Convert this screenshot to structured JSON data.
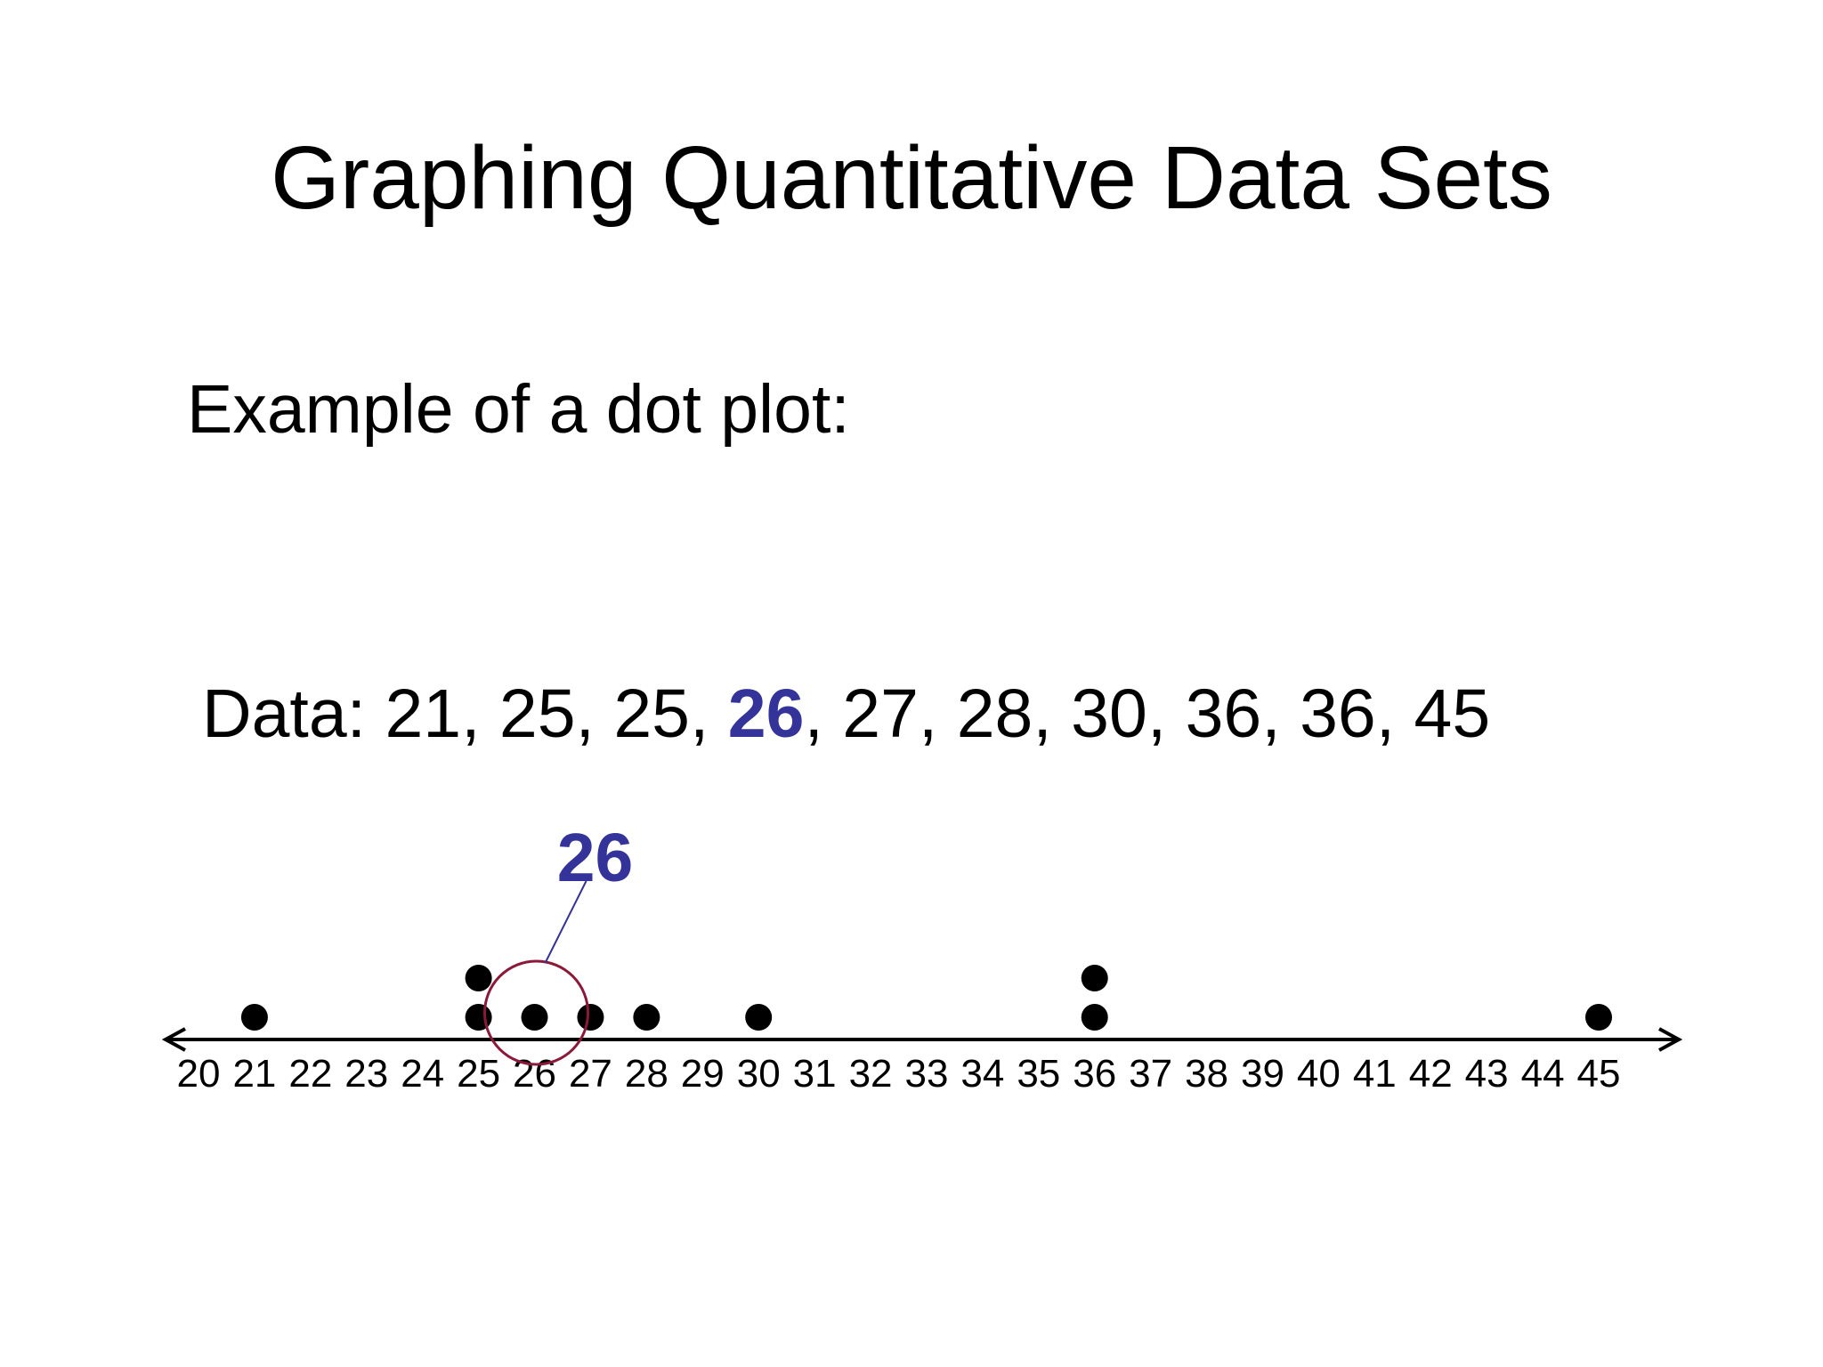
{
  "slide": {
    "title": "Graphing Quantitative Data Sets",
    "subtitle": "Example of a dot plot:",
    "data_prefix": "Data: ",
    "data_values": [
      "21",
      "25",
      "25",
      "26",
      "27",
      "28",
      "30",
      "36",
      "36",
      "45"
    ],
    "data_separator": ", ",
    "highlight_index": 3
  },
  "colors": {
    "highlight_text": "#333399",
    "callout_circle": "#8b1a3a",
    "callout_line": "#333399",
    "dots": "#000000",
    "axis": "#000000"
  },
  "chart_data": {
    "type": "scatter",
    "subtype": "dot-plot",
    "title": "",
    "xlabel": "",
    "ylabel": "",
    "xlim": [
      20,
      45
    ],
    "x_ticks": [
      20,
      21,
      22,
      23,
      24,
      25,
      26,
      27,
      28,
      29,
      30,
      31,
      32,
      33,
      34,
      35,
      36,
      37,
      38,
      39,
      40,
      41,
      42,
      43,
      44,
      45
    ],
    "values": [
      21,
      25,
      25,
      26,
      27,
      28,
      30,
      36,
      36,
      45
    ],
    "annotation": {
      "label": "26",
      "target_value": 26
    },
    "grid": false,
    "legend": "none"
  }
}
